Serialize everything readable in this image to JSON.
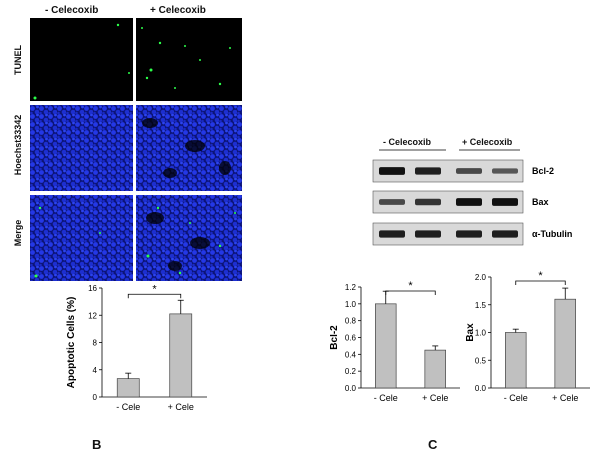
{
  "figure": {
    "panel_b_letter": "B",
    "panel_c_letter": "C"
  },
  "micrographs": {
    "conditions": [
      "- Celecoxib",
      "+ Celecoxib"
    ],
    "rows": [
      "TUNEL",
      "Hoechst33342",
      "Merge"
    ],
    "colors": {
      "tunel": "#2cff4a",
      "nuclei": "#1e2fd8",
      "background": "#000000"
    }
  },
  "western_blot": {
    "groups": [
      "- Celecoxib",
      "+ Celecoxib"
    ],
    "proteins": [
      "Bcl-2",
      "Bax",
      "α-Tubulin"
    ],
    "band_intensity": [
      [
        0.95,
        0.85,
        0.55,
        0.45
      ],
      [
        0.55,
        0.7,
        0.95,
        0.95
      ],
      [
        0.85,
        0.85,
        0.85,
        0.85
      ]
    ]
  },
  "chart_data": [
    {
      "type": "bar",
      "categories": [
        "- Cele",
        "+ Cele"
      ],
      "values": [
        2.7,
        12.2
      ],
      "errors": [
        0.8,
        2.0
      ],
      "ylabel": "Apoptotic Cells (%)",
      "ylim": [
        0,
        16
      ],
      "yticks": [
        "0",
        "4",
        "8",
        "12",
        "16"
      ],
      "significance": "*",
      "bar_color": "#c0c0c0"
    },
    {
      "type": "bar",
      "categories": [
        "- Cele",
        "+ Cele"
      ],
      "values": [
        1.0,
        0.45
      ],
      "errors": [
        0.15,
        0.05
      ],
      "ylabel": "Bcl-2",
      "ylim": [
        0,
        1.2
      ],
      "yticks": [
        "0.0",
        "0.2",
        "0.4",
        "0.6",
        "0.8",
        "1.0",
        "1.2"
      ],
      "significance": "*",
      "bar_color": "#c0c0c0"
    },
    {
      "type": "bar",
      "categories": [
        "- Cele",
        "+ Cele"
      ],
      "values": [
        1.0,
        1.6
      ],
      "errors": [
        0.06,
        0.2
      ],
      "ylabel": "Bax",
      "ylim": [
        0,
        2.0
      ],
      "yticks": [
        "0.0",
        "0.5",
        "1.0",
        "1.5",
        "2.0"
      ],
      "significance": "*",
      "bar_color": "#c0c0c0"
    }
  ]
}
